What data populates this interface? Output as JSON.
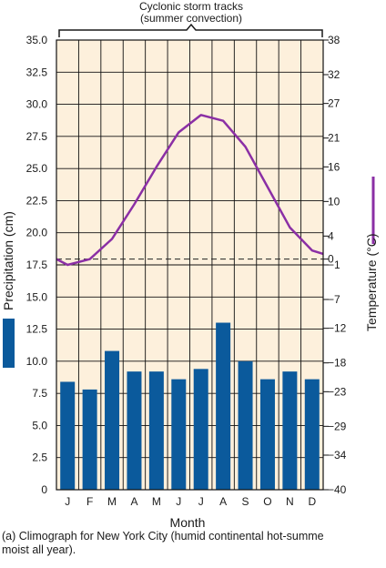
{
  "chart_data": {
    "type": "bar+line",
    "annotation": "Cyclonic storm tracks\n(summer convection)",
    "categories": [
      "J",
      "F",
      "M",
      "A",
      "M",
      "J",
      "J",
      "A",
      "S",
      "O",
      "N",
      "D"
    ],
    "xlabel": "Month",
    "left_axis": {
      "label": "Precipitation (cm)",
      "ticks": [
        "35.0",
        "32.5",
        "30.0",
        "27.5",
        "25.0",
        "22.5",
        "20.0",
        "17.5",
        "15.0",
        "12.5",
        "10.0",
        "7.5",
        "5.0",
        "2.5",
        "0"
      ],
      "range": [
        0,
        35
      ]
    },
    "right_axis": {
      "label": "Temperature (°C)",
      "ticks": [
        "38",
        "32",
        "27",
        "21",
        "16",
        "10",
        "4",
        "0",
        "−1",
        "−7",
        "−12",
        "−18",
        "−23",
        "−29",
        "−34",
        "−40"
      ],
      "range": [
        -40,
        38
      ]
    },
    "series": [
      {
        "kind": "bar",
        "axis": "left",
        "values": [
          8.4,
          7.8,
          10.8,
          9.2,
          9.2,
          8.6,
          9.4,
          13.0,
          10.0,
          8.6,
          9.2,
          8.6
        ]
      },
      {
        "kind": "line",
        "axis": "right",
        "values": [
          -1,
          0,
          3.5,
          9.5,
          16,
          22,
          25,
          24,
          19.5,
          12.5,
          5.5,
          1.5
        ]
      }
    ],
    "dashed_reference": 0,
    "grid": true,
    "colors": {
      "bars": "#0b5a9c",
      "line": "#8b2fa5",
      "plot_bg": "#fdf0dc",
      "grid": "#111111"
    }
  },
  "caption": "(a) Climograph for New York City (humid continental hot-summe\nmoist all year)."
}
